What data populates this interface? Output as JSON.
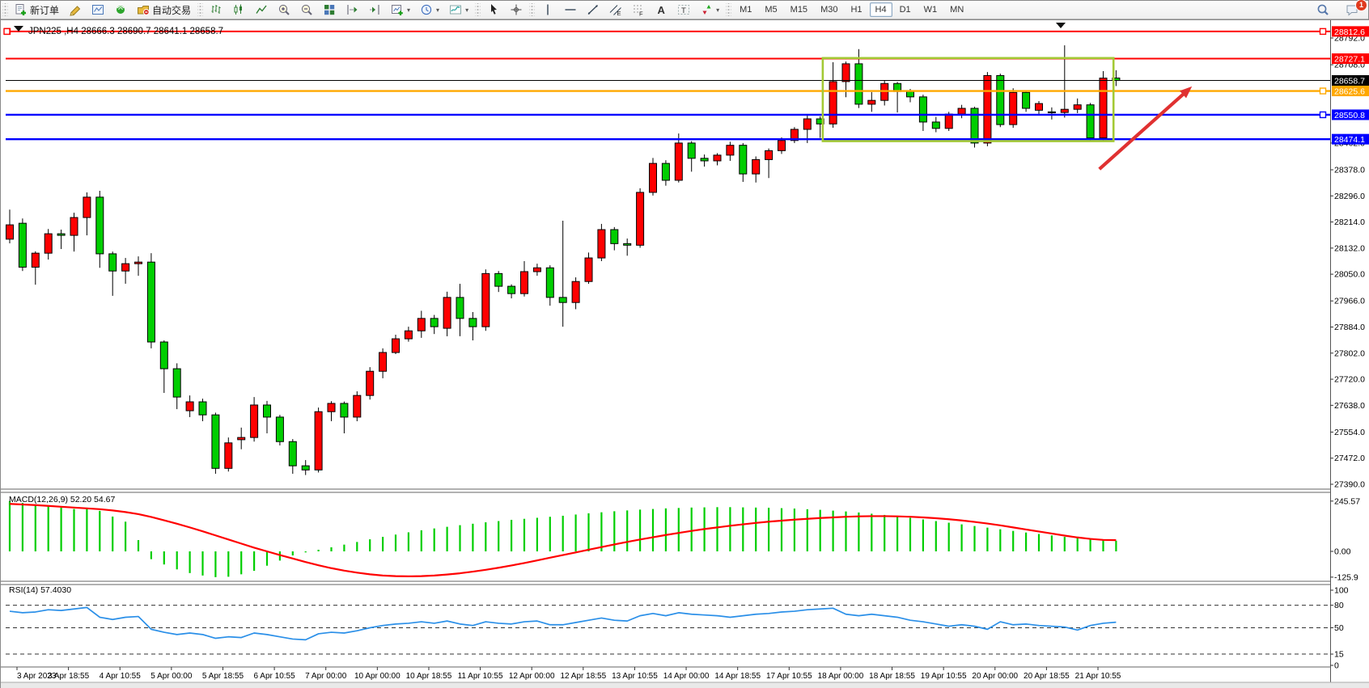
{
  "toolbar": {
    "groups": [
      {
        "items": [
          {
            "icon": "new-order",
            "label": "新订单"
          },
          {
            "icon": "crayon"
          },
          {
            "icon": "chart-window"
          },
          {
            "icon": "signal"
          },
          {
            "icon": "autotrade",
            "label": "自动交易"
          }
        ]
      },
      {
        "items": [
          {
            "icon": "bars-chart"
          },
          {
            "icon": "candles-chart"
          },
          {
            "icon": "line-chart"
          },
          {
            "icon": "zoom-in"
          },
          {
            "icon": "zoom-out"
          },
          {
            "icon": "tile-windows"
          },
          {
            "icon": "autoscroll"
          },
          {
            "icon": "chart-shift"
          },
          {
            "icon": "new-chart",
            "dropdown": true
          },
          {
            "icon": "periods",
            "dropdown": true
          },
          {
            "icon": "templates",
            "dropdown": true
          }
        ]
      },
      {
        "items": [
          {
            "icon": "cursor"
          },
          {
            "icon": "crosshair"
          }
        ]
      },
      {
        "items": [
          {
            "icon": "vline"
          },
          {
            "icon": "hline"
          },
          {
            "icon": "trendline"
          },
          {
            "icon": "channel"
          },
          {
            "icon": "fibonacci"
          },
          {
            "icon": "text"
          },
          {
            "icon": "label"
          },
          {
            "icon": "arrows",
            "dropdown": true
          }
        ]
      }
    ],
    "timeframes": [
      {
        "label": "M1"
      },
      {
        "label": "M5"
      },
      {
        "label": "M15"
      },
      {
        "label": "M30"
      },
      {
        "label": "H1"
      },
      {
        "label": "H4",
        "active": true
      },
      {
        "label": "D1"
      },
      {
        "label": "W1"
      },
      {
        "label": "MN"
      }
    ],
    "right": [
      {
        "icon": "search"
      },
      {
        "icon": "chat",
        "badge": "1"
      }
    ]
  },
  "chart_data": {
    "type": "candlestick",
    "title": "JPN225 ,H4  28666.3 28690.7 28641.1 28658.7",
    "symbol": "JPN225",
    "timeframe": "H4",
    "current_ohlc": {
      "open": 28666.3,
      "high": 28690.7,
      "low": 28641.1,
      "close": 28658.7
    },
    "up_color": "#ff0000",
    "down_color": "#00ce00",
    "y_ticks": [
      28792.0,
      28708.0,
      28462.0,
      28378.0,
      28296.0,
      28214.0,
      28132.0,
      28050.0,
      27966.0,
      27884.0,
      27802.0,
      27720.0,
      27638.0,
      27554.0,
      27472.0,
      27390.0
    ],
    "time_labels": [
      "3 Apr 2023",
      "3 Apr 18:55",
      "4 Apr 10:55",
      "5 Apr 00:00",
      "5 Apr 18:55",
      "6 Apr 10:55",
      "7 Apr 00:00",
      "10 Apr 00:00",
      "10 Apr 18:55",
      "11 Apr 10:55",
      "12 Apr 00:00",
      "12 Apr 18:55",
      "13 Apr 10:55",
      "14 Apr 00:00",
      "14 Apr 18:55",
      "17 Apr 10:55",
      "18 Apr 00:00",
      "18 Apr 18:55",
      "19 Apr 10:55",
      "20 Apr 00:00",
      "20 Apr 18:55",
      "21 Apr 10:55"
    ],
    "price_lines": [
      {
        "price": 28812.6,
        "color": "#ff0000",
        "width": 2,
        "handles": [
          "left",
          "right"
        ]
      },
      {
        "price": 28727.1,
        "color": "#ff0000",
        "width": 2,
        "handles": []
      },
      {
        "price": 28658.7,
        "color": "#000000",
        "width": 1,
        "handles": [],
        "is_current_price": true
      },
      {
        "price": 28625.6,
        "color": "#ffa800",
        "width": 2.4,
        "handles": [
          "right"
        ]
      },
      {
        "price": 28550.8,
        "color": "#0000ff",
        "width": 2.4,
        "handles": [
          "right"
        ]
      },
      {
        "price": 28474.1,
        "color": "#0000ff",
        "width": 2.4,
        "handles": []
      }
    ],
    "rectangle": {
      "color": "#a3c935",
      "bar_start": 63.2,
      "bar_end": 85.8,
      "price_top": 28729,
      "price_bottom": 28468
    },
    "arrow": {
      "color": "#e03131",
      "from": {
        "bar": 84.7,
        "price": 28380
      },
      "to": {
        "bar": 91.9,
        "price": 28640
      }
    },
    "candles": [
      [
        28160,
        28253,
        28147,
        28205
      ],
      [
        28210,
        28225,
        28060,
        28072
      ],
      [
        28072,
        28122,
        28017,
        28116
      ],
      [
        28116,
        28192,
        28096,
        28177
      ],
      [
        28177,
        28190,
        28129,
        28172
      ],
      [
        28172,
        28243,
        28121,
        28228
      ],
      [
        28228,
        28307,
        28172,
        28292
      ],
      [
        28292,
        28312,
        28070,
        28114
      ],
      [
        28114,
        28121,
        27982,
        28060
      ],
      [
        28060,
        28101,
        28020,
        28083
      ],
      [
        28083,
        28106,
        28045,
        28088
      ],
      [
        28088,
        28116,
        27817,
        27837
      ],
      [
        27837,
        27842,
        27677,
        27753
      ],
      [
        27753,
        27770,
        27626,
        27664
      ],
      [
        27621,
        27669,
        27601,
        27649
      ],
      [
        27649,
        27659,
        27588,
        27608
      ],
      [
        27608,
        27615,
        27423,
        27440
      ],
      [
        27440,
        27537,
        27430,
        27520
      ],
      [
        27530,
        27568,
        27500,
        27537
      ],
      [
        27537,
        27664,
        27524,
        27639
      ],
      [
        27639,
        27652,
        27550,
        27601
      ],
      [
        27601,
        27608,
        27512,
        27524
      ],
      [
        27524,
        27532,
        27423,
        27448
      ],
      [
        27448,
        27466,
        27419,
        27435
      ],
      [
        27435,
        27631,
        27427,
        27618
      ],
      [
        27618,
        27651,
        27588,
        27644
      ],
      [
        27644,
        27650,
        27550,
        27601
      ],
      [
        27601,
        27682,
        27588,
        27669
      ],
      [
        27669,
        27758,
        27656,
        27745
      ],
      [
        27745,
        27817,
        27723,
        27804
      ],
      [
        27804,
        27860,
        27799,
        27847
      ],
      [
        27847,
        27885,
        27838,
        27872
      ],
      [
        27872,
        27935,
        27850,
        27911
      ],
      [
        27911,
        27922,
        27862,
        27885
      ],
      [
        27880,
        27995,
        27855,
        27977
      ],
      [
        27977,
        28020,
        27855,
        27911
      ],
      [
        27911,
        27931,
        27842,
        27885
      ],
      [
        27885,
        28065,
        27872,
        28052
      ],
      [
        28052,
        28060,
        27994,
        28012
      ],
      [
        28012,
        28018,
        27974,
        27989
      ],
      [
        27989,
        28091,
        27980,
        28058
      ],
      [
        28058,
        28083,
        28045,
        28070
      ],
      [
        28070,
        28078,
        27951,
        27977
      ],
      [
        27977,
        28218,
        27885,
        27961
      ],
      [
        27961,
        28040,
        27940,
        28027
      ],
      [
        28027,
        28118,
        28020,
        28101
      ],
      [
        28101,
        28208,
        28091,
        28190
      ],
      [
        28190,
        28198,
        28125,
        28146
      ],
      [
        28146,
        28162,
        28108,
        28141
      ],
      [
        28141,
        28320,
        28133,
        28307
      ],
      [
        28307,
        28415,
        28297,
        28398
      ],
      [
        28398,
        28408,
        28328,
        28345
      ],
      [
        28345,
        28492,
        28338,
        28462
      ],
      [
        28462,
        28468,
        28372,
        28414
      ],
      [
        28414,
        28426,
        28388,
        28406
      ],
      [
        28406,
        28430,
        28392,
        28424
      ],
      [
        28424,
        28466,
        28406,
        28455
      ],
      [
        28455,
        28462,
        28340,
        28365
      ],
      [
        28365,
        28420,
        28338,
        28410
      ],
      [
        28410,
        28445,
        28352,
        28438
      ],
      [
        28438,
        28480,
        28428,
        28470
      ],
      [
        28470,
        28512,
        28462,
        28505
      ],
      [
        28505,
        28548,
        28462,
        28538
      ],
      [
        28538,
        28546,
        28478,
        28522
      ],
      [
        28522,
        28716,
        28510,
        28655
      ],
      [
        28655,
        28718,
        28606,
        28711
      ],
      [
        28711,
        28757,
        28572,
        28584
      ],
      [
        28584,
        28622,
        28560,
        28596
      ],
      [
        28596,
        28660,
        28580,
        28649
      ],
      [
        28649,
        28654,
        28558,
        28624
      ],
      [
        28624,
        28632,
        28590,
        28607
      ],
      [
        28607,
        28614,
        28500,
        28528
      ],
      [
        28528,
        28544,
        28496,
        28508
      ],
      [
        28508,
        28560,
        28500,
        28553
      ],
      [
        28553,
        28582,
        28540,
        28571
      ],
      [
        28571,
        28576,
        28448,
        28462
      ],
      [
        28462,
        28685,
        28452,
        28674
      ],
      [
        28674,
        28680,
        28512,
        28520
      ],
      [
        28520,
        28634,
        28510,
        28621
      ],
      [
        28621,
        28628,
        28560,
        28571
      ],
      [
        28565,
        28594,
        28552,
        28586
      ],
      [
        28560,
        28574,
        28536,
        28558
      ],
      [
        28558,
        28769,
        28542,
        28568
      ],
      [
        28568,
        28602,
        28556,
        28582
      ],
      [
        28582,
        28588,
        28468,
        28478
      ],
      [
        28478,
        28688,
        28470,
        28666
      ],
      [
        28666.3,
        28690.7,
        28641.1,
        28658.7
      ]
    ],
    "macd": {
      "label": "MACD(12,26,9) 52.20 54.67",
      "axis": [
        "245.57",
        "0.00",
        "-125.9"
      ],
      "current_main": 52.2,
      "current_signal": 54.67,
      "histogram": [
        245.6,
        237,
        229,
        221,
        214,
        207,
        212,
        198,
        170,
        145,
        55,
        -38,
        -64,
        -88,
        -106,
        -118,
        -125.9,
        -124,
        -112,
        -95,
        -70,
        -45,
        -20,
        -5,
        8,
        20,
        33,
        46,
        59,
        71,
        82,
        93,
        103,
        112,
        120,
        128,
        135,
        142,
        148,
        154,
        159,
        164,
        169,
        174,
        180,
        186,
        191,
        196,
        200,
        204,
        207,
        210,
        212,
        214,
        215,
        216,
        216,
        215,
        214,
        213,
        211,
        209,
        206,
        203,
        199,
        195,
        190,
        184,
        178,
        171,
        164,
        156,
        148,
        140,
        132,
        124,
        116,
        108,
        100,
        92,
        85,
        78,
        71,
        65,
        59,
        55,
        52.2
      ],
      "signal": [
        232,
        229,
        226,
        222,
        218,
        214,
        210,
        206,
        200,
        192,
        182,
        168,
        152,
        135,
        117,
        98,
        78,
        58,
        38,
        18,
        0,
        -18,
        -35,
        -52,
        -68,
        -82,
        -94,
        -104,
        -112,
        -118,
        -121,
        -122,
        -121,
        -118,
        -113,
        -107,
        -99,
        -90,
        -80,
        -69,
        -57,
        -44,
        -31,
        -18,
        -5,
        8,
        21,
        34,
        46,
        58,
        69,
        80,
        90,
        100,
        109,
        117,
        125,
        132,
        139,
        145,
        150,
        155,
        159,
        163,
        166,
        169,
        171,
        172,
        172,
        171,
        169,
        166,
        162,
        157,
        151,
        144,
        136,
        127,
        117,
        107,
        97,
        87,
        77,
        68,
        61,
        56,
        54.7
      ]
    },
    "rsi": {
      "label": "RSI(14) 57.4030",
      "current": 57.403,
      "axis": [
        "100",
        "80",
        "50",
        "15",
        "0"
      ],
      "levels": [
        80,
        50,
        15
      ],
      "series": [
        72,
        70,
        71,
        74,
        73,
        75,
        77,
        64,
        61,
        64,
        65,
        48,
        44,
        41,
        43,
        41,
        36,
        38,
        37,
        43,
        41,
        38,
        35,
        34,
        42,
        44,
        43,
        46,
        50,
        53,
        55,
        56,
        58,
        56,
        59,
        55,
        53,
        58,
        56,
        55,
        58,
        59,
        54,
        54,
        57,
        60,
        63,
        60,
        59,
        66,
        69,
        66,
        70,
        68,
        67,
        66,
        64,
        66,
        68,
        69,
        71,
        72,
        74,
        75,
        76,
        68,
        66,
        68,
        66,
        64,
        60,
        58,
        55,
        52,
        54,
        52,
        48,
        58,
        54,
        55,
        53,
        52,
        51,
        47,
        53,
        56,
        57.4
      ]
    },
    "badges": [
      {
        "text": "28812.6",
        "color": "#ff0000"
      },
      {
        "text": "28727.1",
        "color": "#ff0000"
      },
      {
        "text": "28658.7",
        "color": "#000000"
      },
      {
        "text": "28625.6",
        "color": "#ffa800"
      },
      {
        "text": "28550.8",
        "color": "#0000ff"
      },
      {
        "text": "28474.1",
        "color": "#0000ff"
      }
    ]
  }
}
